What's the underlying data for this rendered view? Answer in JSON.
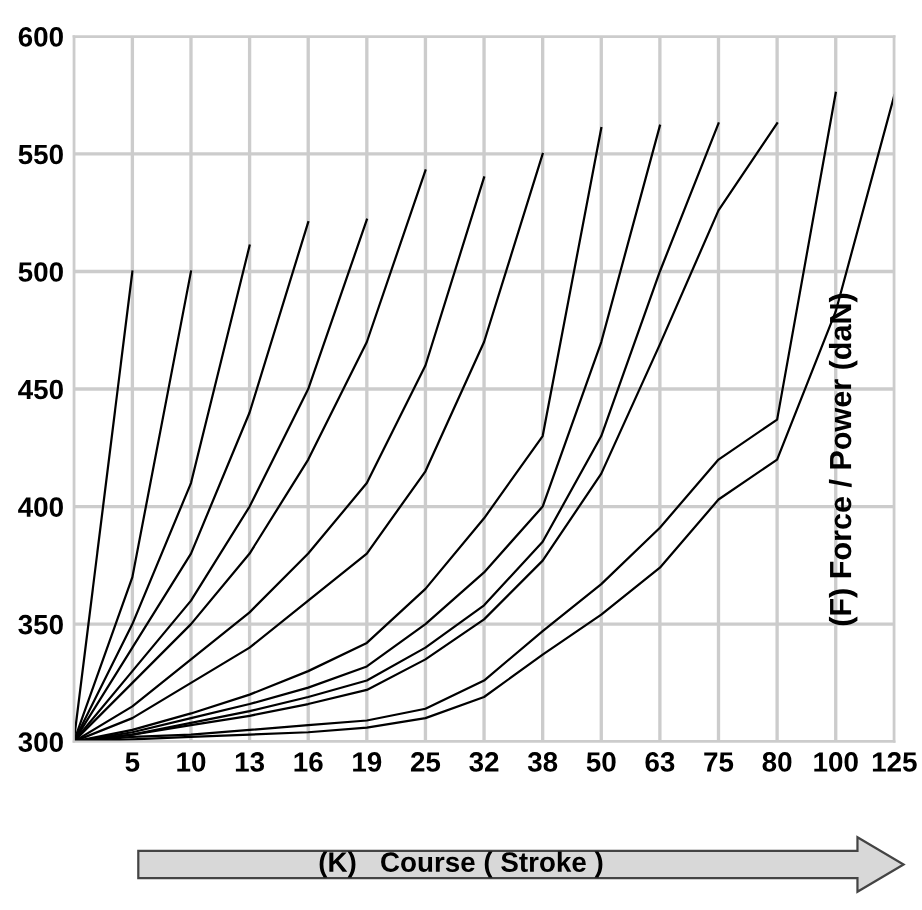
{
  "chart_data": {
    "type": "line",
    "xlabel": "(K)   Course ( Stroke )",
    "ylabel": "(F) Force / Power (daN)",
    "categories": [
      null,
      "5",
      "10",
      "13",
      "16",
      "19",
      "25",
      "32",
      "38",
      "50",
      "63",
      "75",
      "80",
      "100",
      "125"
    ],
    "ylim": [
      300,
      600
    ],
    "yticks": [
      300,
      350,
      400,
      450,
      500,
      550,
      600
    ],
    "grid": true,
    "marker": "none",
    "line_style": "solid",
    "series": [
      {
        "color": "#000000",
        "values": [
          300,
          500,
          null,
          null,
          null,
          null,
          null,
          null,
          null,
          null,
          null,
          null,
          null,
          null,
          null
        ]
      },
      {
        "color": "#000000",
        "values": [
          300,
          370,
          500,
          null,
          null,
          null,
          null,
          null,
          null,
          null,
          null,
          null,
          null,
          null,
          null
        ]
      },
      {
        "color": "#000000",
        "values": [
          300,
          350,
          410,
          511,
          null,
          null,
          null,
          null,
          null,
          null,
          null,
          null,
          null,
          null,
          null
        ]
      },
      {
        "color": "#000000",
        "values": [
          300,
          340,
          380,
          440,
          521,
          null,
          null,
          null,
          null,
          null,
          null,
          null,
          null,
          null,
          null
        ]
      },
      {
        "color": "#000000",
        "values": [
          300,
          330,
          360,
          400,
          450,
          522,
          null,
          null,
          null,
          null,
          null,
          null,
          null,
          null,
          null
        ]
      },
      {
        "color": "#000000",
        "values": [
          300,
          325,
          350,
          380,
          420,
          470,
          543,
          null,
          null,
          null,
          null,
          null,
          null,
          null,
          null
        ]
      },
      {
        "color": "#000000",
        "values": [
          300,
          315,
          335,
          355,
          380,
          410,
          460,
          540,
          null,
          null,
          null,
          null,
          null,
          null,
          null
        ]
      },
      {
        "color": "#000000",
        "values": [
          300,
          310,
          325,
          340,
          360,
          380,
          415,
          470,
          550,
          null,
          null,
          null,
          null,
          null,
          null
        ]
      },
      {
        "color": "#000000",
        "values": [
          300,
          305,
          312,
          320,
          330,
          342,
          365,
          395,
          430,
          561,
          null,
          null,
          null,
          null,
          null
        ]
      },
      {
        "color": "#000000",
        "values": [
          300,
          304,
          310,
          316,
          323,
          332,
          350,
          372,
          400,
          470,
          562,
          null,
          null,
          null,
          null
        ]
      },
      {
        "color": "#000000",
        "values": [
          300,
          303,
          308,
          313,
          319,
          326,
          340,
          358,
          385,
          430,
          500,
          563,
          null,
          null,
          null
        ]
      },
      {
        "color": "#000000",
        "values": [
          300,
          303,
          307,
          311,
          316,
          322,
          335,
          352,
          377,
          414,
          469,
          526,
          563,
          null,
          null
        ]
      },
      {
        "color": "#000000",
        "values": [
          300,
          302,
          303,
          305,
          307,
          309,
          314,
          326,
          347,
          367,
          391,
          420,
          437,
          576,
          null
        ]
      },
      {
        "color": "#000000",
        "values": [
          300,
          301,
          302,
          303,
          304,
          306,
          310,
          319,
          337,
          354,
          374,
          403,
          420,
          483,
          575
        ]
      }
    ]
  }
}
